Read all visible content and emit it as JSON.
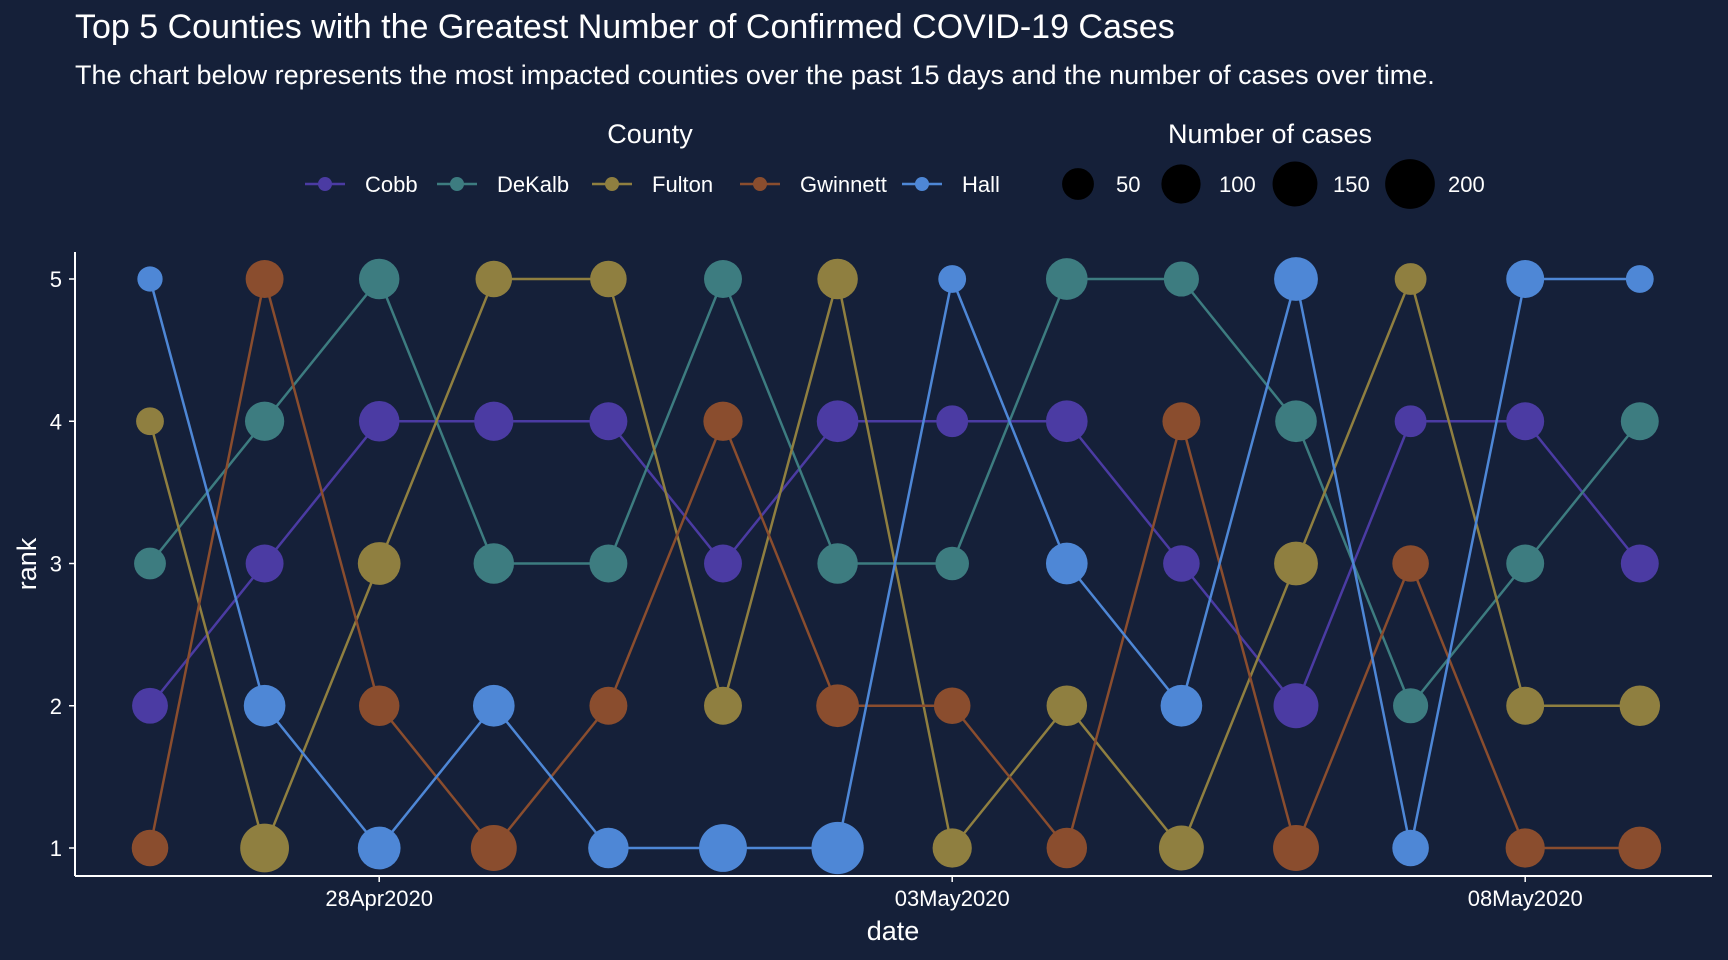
{
  "chart_data": {
    "type": "line",
    "title": "Top 5 Counties with the Greatest Number of Confirmed COVID-19 Cases",
    "subtitle": "The chart below represents the most impacted counties over the past 15 days and the number of cases over time.",
    "xlabel": "date",
    "ylabel": "rank",
    "x": [
      "2020-04-26",
      "2020-04-27",
      "2020-04-28",
      "2020-04-29",
      "2020-04-30",
      "2020-05-01",
      "2020-05-02",
      "2020-05-03",
      "2020-05-04",
      "2020-05-05",
      "2020-05-06",
      "2020-05-07",
      "2020-05-08",
      "2020-05-09"
    ],
    "x_ticks": [
      {
        "date": "2020-04-28",
        "label": "28Apr2020"
      },
      {
        "date": "2020-05-03",
        "label": "03May2020"
      },
      {
        "date": "2020-05-08",
        "label": "08May2020"
      }
    ],
    "y_ticks": [
      1,
      2,
      3,
      4,
      5
    ],
    "ylim": [
      0.8,
      5.2
    ],
    "grid": false,
    "colors": {
      "background": "#152039",
      "text": "#ffffff",
      "axis": "#ffffff"
    },
    "legend_county": {
      "title": "County",
      "position": "top"
    },
    "legend_size": {
      "title": "Number of cases",
      "items": [
        50,
        100,
        150,
        200
      ]
    },
    "series": [
      {
        "name": "Cobb",
        "color": "#4b3ba3",
        "rank": [
          2,
          3,
          4,
          4,
          4,
          3,
          4,
          4,
          4,
          3,
          2,
          4,
          4,
          3
        ],
        "cases": [
          75,
          90,
          110,
          100,
          90,
          90,
          120,
          50,
          120,
          80,
          150,
          50,
          90,
          90
        ]
      },
      {
        "name": "DeKalb",
        "color": "#3d7c80",
        "rank": [
          3,
          4,
          5,
          3,
          3,
          5,
          3,
          3,
          5,
          5,
          4,
          2,
          3,
          4
        ],
        "cases": [
          50,
          100,
          110,
          110,
          90,
          90,
          110,
          60,
          120,
          70,
          120,
          70,
          90,
          90
        ]
      },
      {
        "name": "Fulton",
        "color": "#8f7f40",
        "rank": [
          4,
          1,
          3,
          5,
          5,
          2,
          5,
          1,
          2,
          1,
          3,
          5,
          2,
          2
        ],
        "cases": [
          30,
          190,
          130,
          80,
          80,
          90,
          110,
          100,
          110,
          150,
          140,
          50,
          90,
          110
        ]
      },
      {
        "name": "Gwinnett",
        "color": "#8a4d2e",
        "rank": [
          1,
          5,
          2,
          1,
          2,
          4,
          2,
          2,
          1,
          4,
          1,
          3,
          1,
          1
        ],
        "cases": [
          80,
          90,
          110,
          160,
          90,
          100,
          130,
          80,
          110,
          90,
          160,
          80,
          100,
          130
        ]
      },
      {
        "name": "Hall",
        "color": "#4e87d6",
        "rank": [
          5,
          2,
          1,
          2,
          1,
          1,
          1,
          5,
          3,
          2,
          5,
          1,
          5,
          5
        ],
        "cases": [
          20,
          120,
          130,
          120,
          110,
          180,
          230,
          30,
          120,
          120,
          140,
          80,
          90,
          30
        ]
      }
    ]
  }
}
